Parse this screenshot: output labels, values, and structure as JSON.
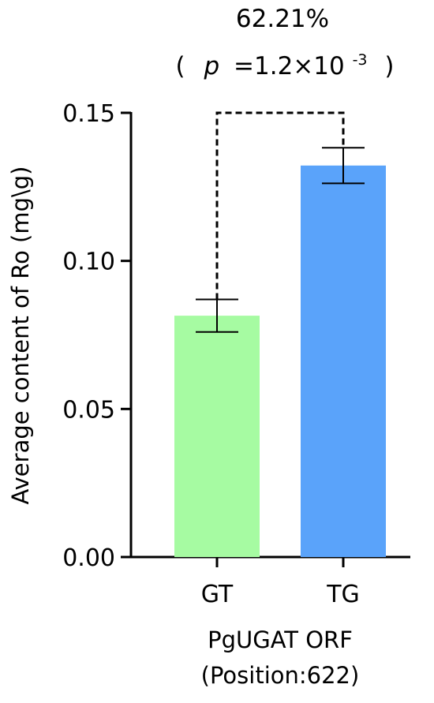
{
  "chart_data": {
    "type": "bar",
    "annotation": {
      "percent": "62.21%",
      "p_prefix": "(",
      "p_symbol": "p",
      "p_equals": "=1.2×10",
      "p_exponent": "-3",
      "p_suffix": ")"
    },
    "categories": [
      "GT",
      "TG"
    ],
    "values": [
      0.0815,
      0.1322
    ],
    "errors": [
      0.0055,
      0.006
    ],
    "colors": [
      "#a6fba2",
      "#5aa3fa"
    ],
    "ylabel": "Average content of Ro (mg\\g)",
    "xlabel_line1": "PgUGAT ORF",
    "xlabel_line2": "(Position:622)",
    "ylim": [
      0,
      0.15
    ],
    "yticks": [
      0.0,
      0.05,
      0.1,
      0.15
    ],
    "ytick_labels": [
      "0.00",
      "0.05",
      "0.10",
      "0.15"
    ],
    "grid": false,
    "comparison_bracket": "dashed"
  }
}
